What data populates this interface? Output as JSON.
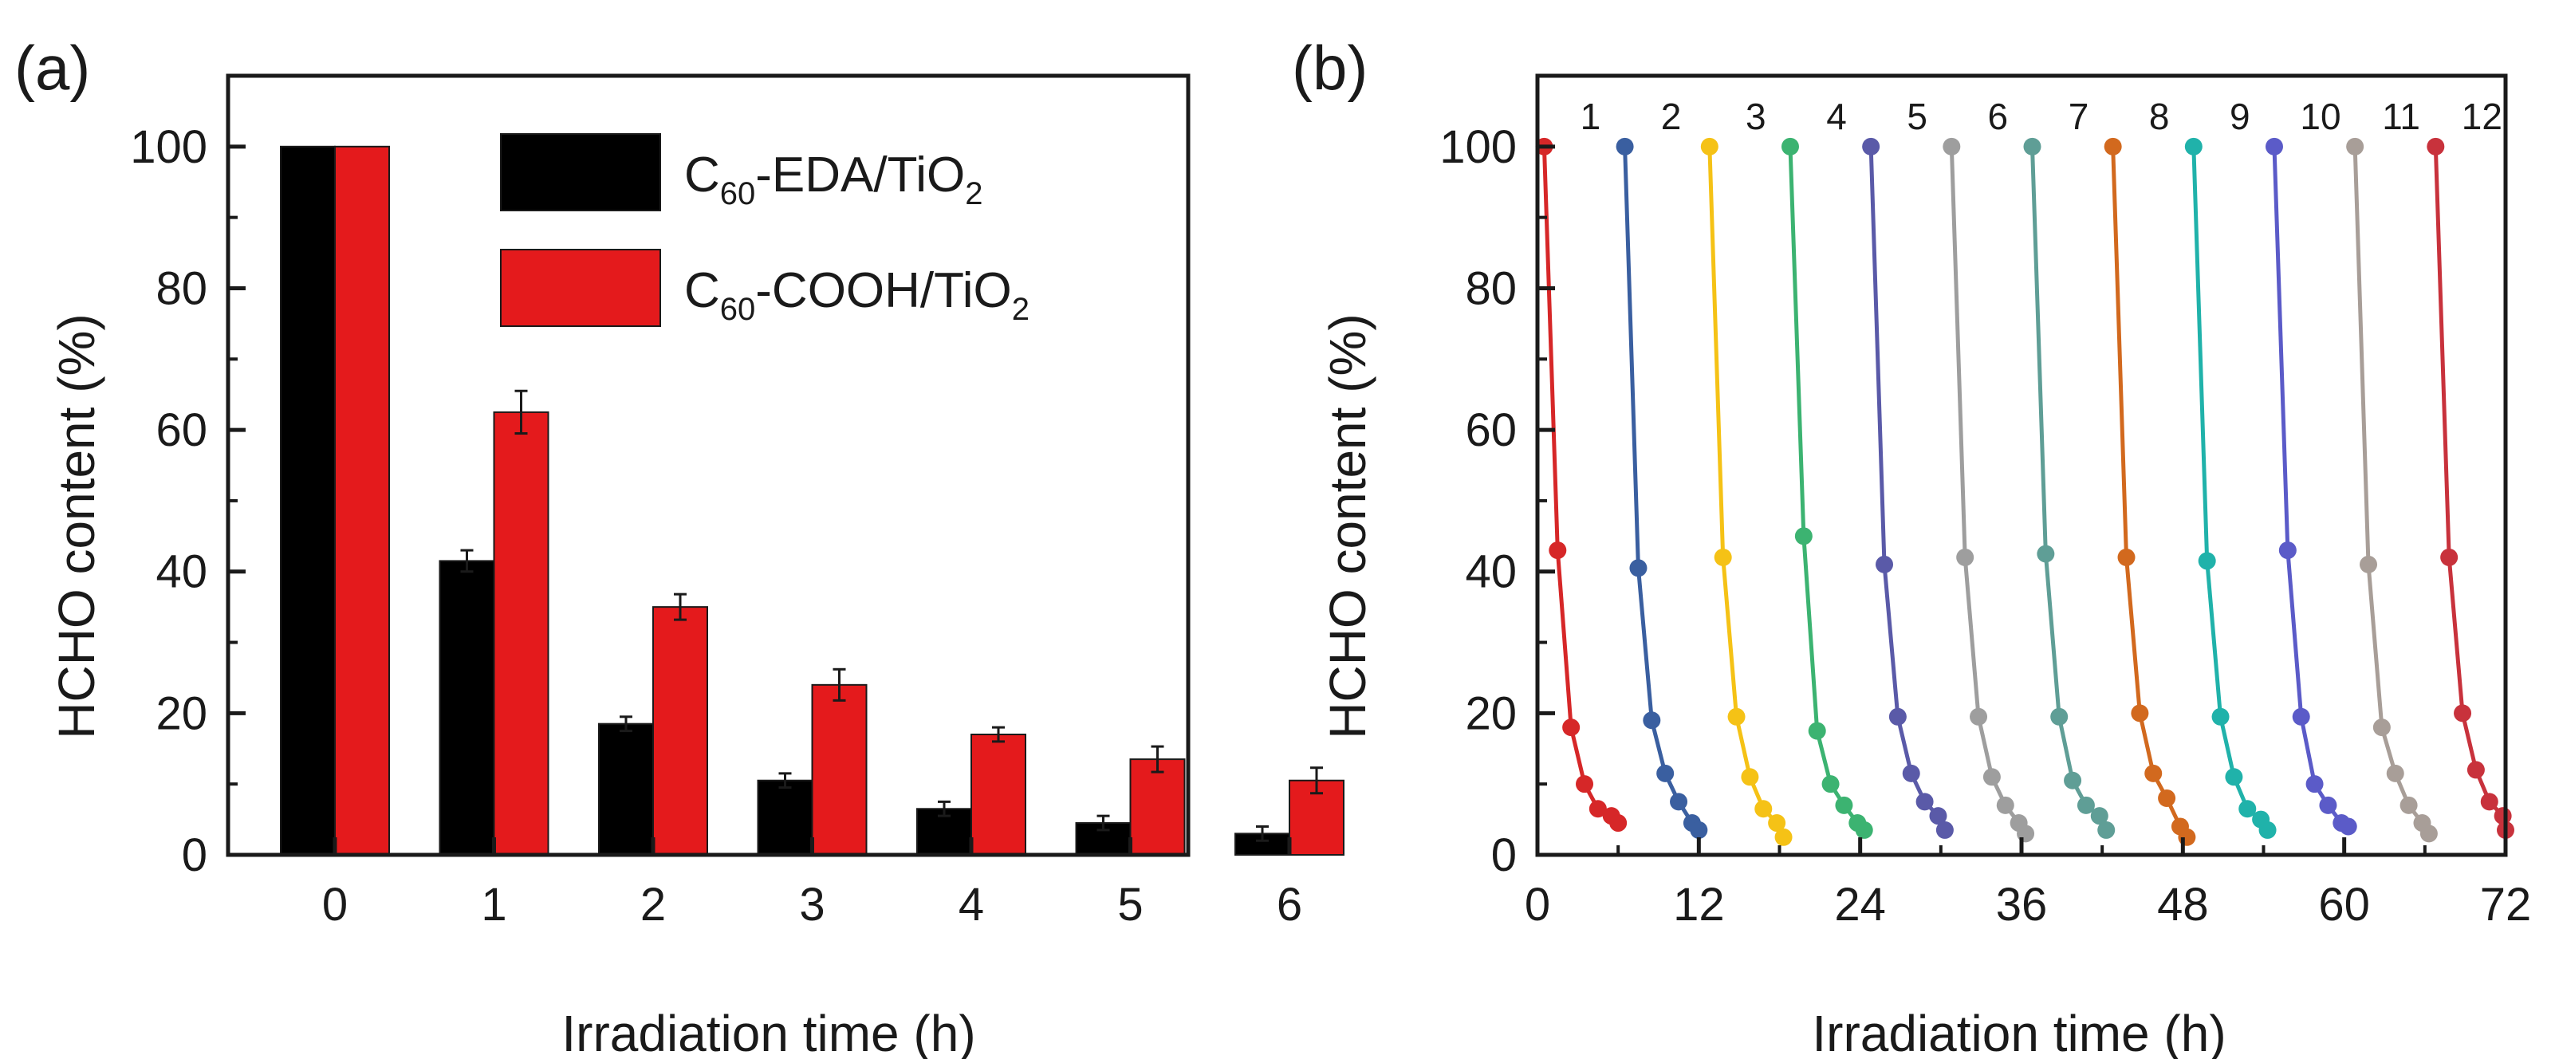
{
  "chart_data": [
    {
      "panel": "(a)",
      "type": "bar",
      "xlabel": "Irradiation time (h)",
      "ylabel": "HCHO content (%)",
      "ylim": [
        0,
        110
      ],
      "yticks": [
        0,
        20,
        40,
        60,
        80,
        100
      ],
      "categories": [
        "0",
        "1",
        "2",
        "3",
        "4",
        "5",
        "6"
      ],
      "legend_position": "top-right",
      "series": [
        {
          "name": "C60-EDA/TiO2",
          "legend": {
            "main": "C",
            "sub": "60",
            "rest": "-EDA/TiO",
            "sub2": "2"
          },
          "color": "#000000",
          "values": [
            100,
            41.5,
            18.5,
            10.5,
            6.5,
            4.5,
            3.0
          ],
          "errors": [
            0,
            1.5,
            1.0,
            1.0,
            1.0,
            1.0,
            1.0
          ]
        },
        {
          "name": "C60-COOH/TiO2",
          "legend": {
            "main": "C",
            "sub": "60",
            "rest": "-COOH/TiO",
            "sub2": "2"
          },
          "color": "#e41a1c",
          "values": [
            100,
            62.5,
            35.0,
            24.0,
            17.0,
            13.5,
            10.5
          ],
          "errors": [
            0,
            3.0,
            1.8,
            2.2,
            1.0,
            1.8,
            1.8
          ]
        }
      ]
    },
    {
      "panel": "(b)",
      "type": "line",
      "xlabel": "Irradiation time (h)",
      "ylabel": "HCHO content (%)",
      "xlim": [
        0,
        72
      ],
      "ylim": [
        0,
        110
      ],
      "xticks": [
        0,
        12,
        24,
        36,
        48,
        60,
        72
      ],
      "yticks": [
        0,
        20,
        40,
        60,
        80,
        100
      ],
      "cycle_labels": [
        "1",
        "2",
        "3",
        "4",
        "5",
        "6",
        "7",
        "8",
        "9",
        "10",
        "11",
        "12"
      ],
      "series": [
        {
          "name": "1",
          "color": "#d62728",
          "x": [
            0.5,
            1.5,
            2.5,
            3.5,
            4.5,
            5.5,
            6.0
          ],
          "y": [
            100,
            43,
            18,
            10,
            6.5,
            5.5,
            4.5
          ]
        },
        {
          "name": "2",
          "color": "#3a5fa0",
          "x": [
            6.5,
            7.5,
            8.5,
            9.5,
            10.5,
            11.5,
            12.0
          ],
          "y": [
            100,
            40.5,
            19,
            11.5,
            7.5,
            4.5,
            3.5
          ]
        },
        {
          "name": "3",
          "color": "#f5c216",
          "x": [
            12.8,
            13.8,
            14.8,
            15.8,
            16.8,
            17.8,
            18.3
          ],
          "y": [
            100,
            42,
            19.5,
            11,
            6.5,
            4.5,
            2.5
          ]
        },
        {
          "name": "4",
          "color": "#3cb371",
          "x": [
            18.8,
            19.8,
            20.8,
            21.8,
            22.8,
            23.8,
            24.3
          ],
          "y": [
            100,
            45,
            17.5,
            10,
            7,
            4.5,
            3.5
          ]
        },
        {
          "name": "5",
          "color": "#5a5aa8",
          "x": [
            24.8,
            25.8,
            26.8,
            27.8,
            28.8,
            29.8,
            30.3
          ],
          "y": [
            100,
            41,
            19.5,
            11.5,
            7.5,
            5.5,
            3.5
          ]
        },
        {
          "name": "6",
          "color": "#9e9e9e",
          "x": [
            30.8,
            31.8,
            32.8,
            33.8,
            34.8,
            35.8,
            36.3
          ],
          "y": [
            100,
            42,
            19.5,
            11,
            7,
            4.5,
            3.0
          ]
        },
        {
          "name": "7",
          "color": "#5f9e96",
          "x": [
            36.8,
            37.8,
            38.8,
            39.8,
            40.8,
            41.8,
            42.3
          ],
          "y": [
            100,
            42.5,
            19.5,
            10.5,
            7,
            5.5,
            3.5
          ]
        },
        {
          "name": "8",
          "color": "#d2691e",
          "x": [
            42.8,
            43.8,
            44.8,
            45.8,
            46.8,
            47.8,
            48.3
          ],
          "y": [
            100,
            42,
            20,
            11.5,
            8,
            4,
            2.5
          ]
        },
        {
          "name": "9",
          "color": "#20b2aa",
          "x": [
            48.8,
            49.8,
            50.8,
            51.8,
            52.8,
            53.8,
            54.3
          ],
          "y": [
            100,
            41.5,
            19.5,
            11,
            6.5,
            5,
            3.5
          ]
        },
        {
          "name": "10",
          "color": "#5b5bc8",
          "x": [
            54.8,
            55.8,
            56.8,
            57.8,
            58.8,
            59.8,
            60.3
          ],
          "y": [
            100,
            43,
            19.5,
            10,
            7,
            4.5,
            4.0
          ]
        },
        {
          "name": "11",
          "color": "#a89e98",
          "x": [
            60.8,
            61.8,
            62.8,
            63.8,
            64.8,
            65.8,
            66.3
          ],
          "y": [
            100,
            41,
            18,
            11.5,
            7,
            4.5,
            3.0
          ]
        },
        {
          "name": "12",
          "color": "#c8323c",
          "x": [
            66.8,
            67.8,
            68.8,
            69.8,
            70.8,
            71.8,
            72.0
          ],
          "y": [
            100,
            42,
            20,
            12,
            7.5,
            5.5,
            3.5
          ]
        }
      ]
    }
  ]
}
